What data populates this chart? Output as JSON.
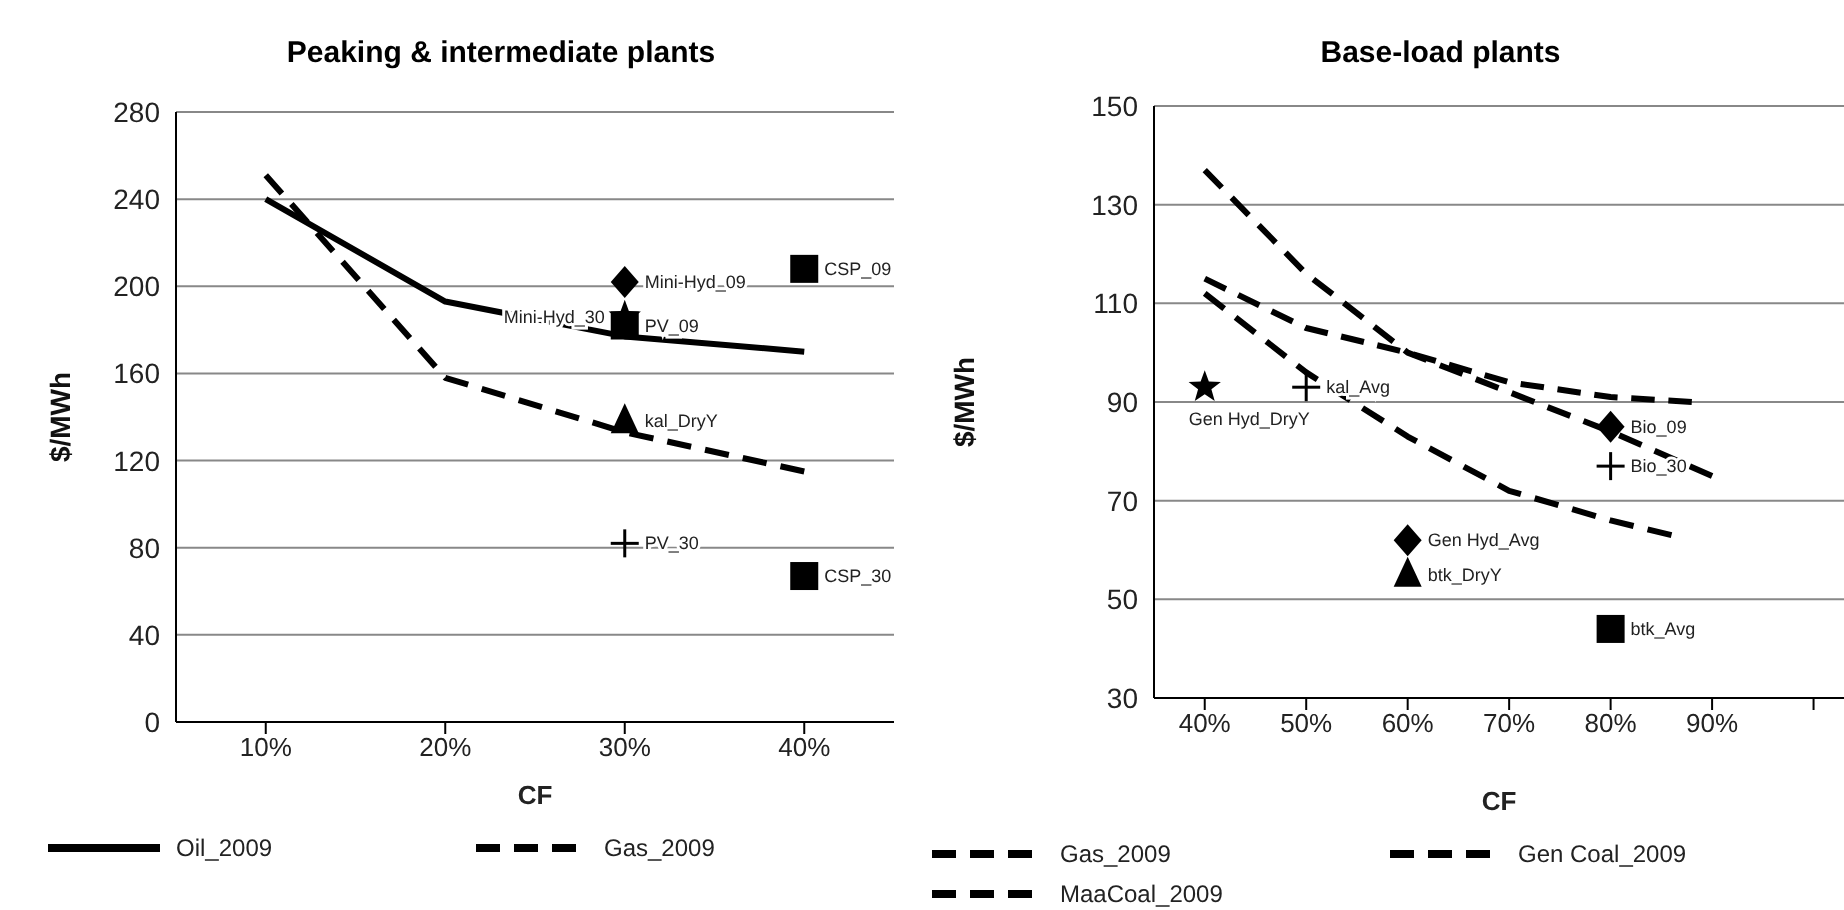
{
  "chart_data": [
    {
      "type": "line",
      "title": "Peaking & intermediate plants",
      "xlabel": "CF",
      "ylabel": "$/MWh",
      "categories": [
        "10%",
        "20%",
        "30%",
        "40%"
      ],
      "ylim": [
        0,
        280
      ],
      "yticks": [
        0,
        40,
        80,
        120,
        160,
        200,
        240,
        280
      ],
      "grid": "y",
      "legend": "bottom",
      "series": [
        {
          "name": "Oil_2009",
          "color": "#000000",
          "line_style": "solid",
          "marker": "none",
          "values": [
            240,
            193,
            177,
            170
          ]
        },
        {
          "name": "Gas_2009",
          "color": "#000000",
          "line_style": "dashed",
          "marker": "none",
          "values": [
            251,
            158,
            133,
            115
          ]
        },
        {
          "name": "Mini-Hyd_09",
          "type": "scatter",
          "color": "#000000",
          "marker": "diamond",
          "x": [
            "30%"
          ],
          "values": [
            202
          ]
        },
        {
          "name": "PV_09",
          "type": "scatter",
          "color": "#000000",
          "marker": "square",
          "x": [
            "30%"
          ],
          "values": [
            182
          ]
        },
        {
          "name": "Mini-Hyd_30",
          "type": "scatter",
          "color": "#000000",
          "marker": "star",
          "x": [
            "30%"
          ],
          "values": [
            186
          ]
        },
        {
          "name": "kal_DryY",
          "type": "scatter",
          "color": "#000000",
          "marker": "triangle",
          "x": [
            "30%"
          ],
          "values": [
            138
          ]
        },
        {
          "name": "PV_30",
          "type": "scatter",
          "color": "#000000",
          "marker": "cross",
          "x": [
            "30%"
          ],
          "values": [
            82
          ]
        },
        {
          "name": "CSP_09",
          "type": "scatter",
          "color": "#000000",
          "marker": "square",
          "x": [
            "40%"
          ],
          "values": [
            208
          ]
        },
        {
          "name": "CSP_30",
          "type": "scatter",
          "color": "#000000",
          "marker": "square",
          "x": [
            "40%"
          ],
          "values": [
            67
          ]
        }
      ]
    },
    {
      "type": "line",
      "title": "Base-load plants",
      "xlabel": "CF",
      "ylabel": "$/MWh",
      "xlim": [
        35,
        103
      ],
      "xticks": [
        {
          "value": 40,
          "label": "40%"
        },
        {
          "value": 50,
          "label": "50%"
        },
        {
          "value": 60,
          "label": "60%"
        },
        {
          "value": 70,
          "label": "70%"
        },
        {
          "value": 80,
          "label": "80%"
        },
        {
          "value": 90,
          "label": "90%"
        },
        {
          "value": 100,
          "label": null
        }
      ],
      "ylim": [
        30,
        150
      ],
      "yticks": [
        30,
        50,
        70,
        90,
        110,
        130,
        150
      ],
      "grid": "y",
      "legend": "bottom",
      "series": [
        {
          "name": "Gas_2009",
          "color": "#000000",
          "line_style": "dashed",
          "marker": "none",
          "x": [
            40,
            50,
            60,
            70,
            80,
            88
          ],
          "values": [
            115,
            105,
            100,
            94,
            91,
            90
          ]
        },
        {
          "name": "Gen Coal_2009",
          "color": "#000000",
          "line_style": "dashed",
          "marker": "none",
          "x": [
            40,
            50,
            60,
            70,
            80,
            90
          ],
          "values": [
            137,
            116,
            100,
            92,
            84,
            75
          ]
        },
        {
          "name": "MaaCoal_2009",
          "color": "#000000",
          "line_style": "dashed",
          "marker": "none",
          "x": [
            40,
            50,
            60,
            70,
            80,
            86
          ],
          "values": [
            112,
            96,
            83,
            72,
            66,
            63
          ]
        },
        {
          "name": "Gen Hyd_DryY",
          "type": "scatter",
          "color": "#000000",
          "marker": "star",
          "x": [
            40
          ],
          "values": [
            93
          ]
        },
        {
          "name": "kal_Avg",
          "type": "scatter",
          "color": "#000000",
          "marker": "cross",
          "x": [
            50
          ],
          "values": [
            93
          ]
        },
        {
          "name": "Gen Hyd_Avg",
          "type": "scatter",
          "color": "#000000",
          "marker": "diamond",
          "x": [
            60
          ],
          "values": [
            62
          ]
        },
        {
          "name": "btk_DryY",
          "type": "scatter",
          "color": "#000000",
          "marker": "triangle",
          "x": [
            60
          ],
          "values": [
            55
          ]
        },
        {
          "name": "Bio_09",
          "type": "scatter",
          "color": "#000000",
          "marker": "diamond",
          "x": [
            80
          ],
          "values": [
            85
          ]
        },
        {
          "name": "Bio_30",
          "type": "scatter",
          "color": "#000000",
          "marker": "cross",
          "x": [
            80
          ],
          "values": [
            77
          ]
        },
        {
          "name": "btk_Avg",
          "type": "scatter",
          "color": "#000000",
          "marker": "square",
          "x": [
            80
          ],
          "values": [
            44
          ]
        }
      ]
    }
  ]
}
